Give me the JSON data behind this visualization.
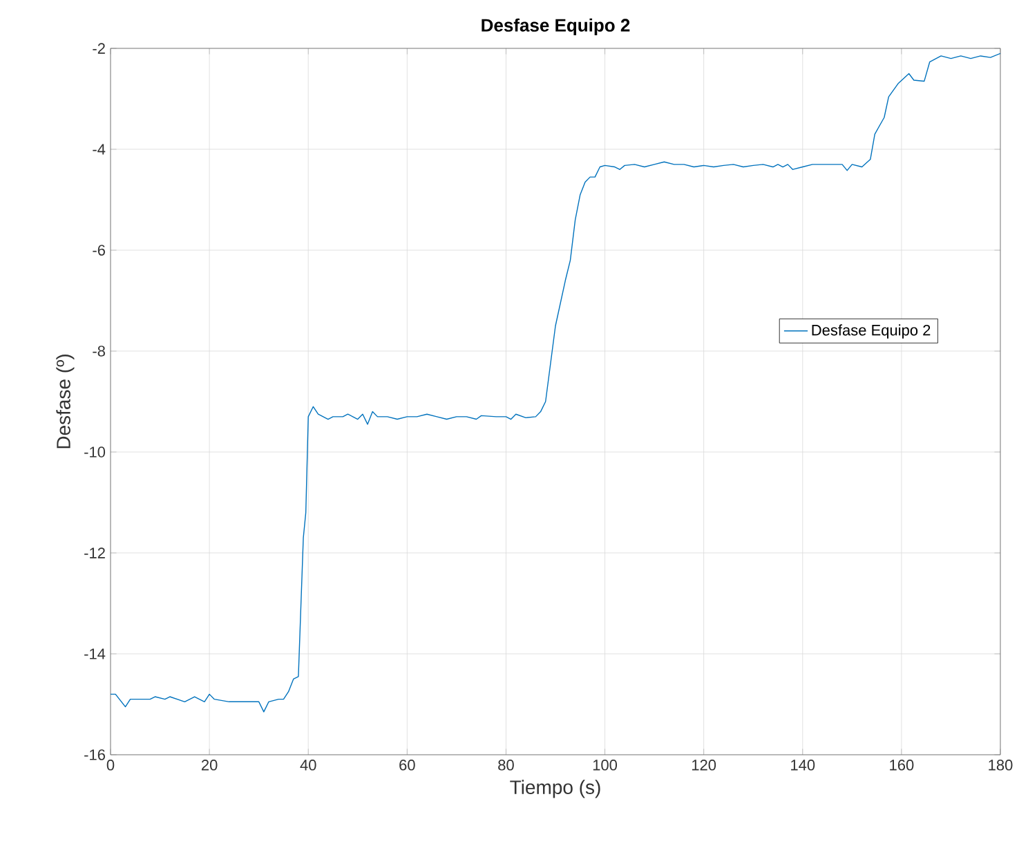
{
  "chart_data": {
    "type": "line",
    "title": "Desfase Equipo 2",
    "xlabel": "Tiempo (s)",
    "ylabel": "Desfase (º)",
    "xlim": [
      0,
      180
    ],
    "ylim": [
      -16,
      -2
    ],
    "xticks": [
      0,
      20,
      40,
      60,
      80,
      100,
      120,
      140,
      160,
      180
    ],
    "yticks": [
      -16,
      -14,
      -12,
      -10,
      -8,
      -6,
      -4,
      -2
    ],
    "grid": true,
    "legend": "right",
    "series": [
      {
        "name": "Desfase Equipo 2",
        "color": "#0072bd",
        "x": [
          0,
          1,
          3,
          4,
          8,
          9,
          11,
          12,
          15,
          17,
          19,
          20,
          21,
          24,
          27,
          30,
          31,
          32,
          34,
          35,
          36,
          37,
          38,
          39,
          39.5,
          40,
          41,
          42,
          44,
          45,
          47,
          48,
          49,
          50,
          51,
          52,
          53,
          54,
          56,
          58,
          60,
          62,
          64,
          66,
          68,
          70,
          72,
          74,
          75,
          78,
          80,
          81,
          82,
          84,
          86,
          87,
          88,
          90,
          92,
          93,
          94,
          95,
          96,
          97,
          98,
          99,
          100,
          102,
          103,
          104,
          106,
          108,
          110,
          112,
          114,
          116,
          118,
          120,
          122,
          124,
          126,
          128,
          130,
          132,
          134,
          135,
          136,
          137,
          138,
          140,
          142,
          144,
          146,
          148,
          149,
          150,
          152,
          153.7,
          154.6,
          156.5,
          157.4,
          159.3,
          161.5,
          162.5,
          164.6,
          165.7,
          168,
          170,
          172,
          174,
          176,
          178,
          180
        ],
        "values": [
          -14.8,
          -14.8,
          -15.05,
          -14.9,
          -14.9,
          -14.85,
          -14.9,
          -14.85,
          -14.95,
          -14.85,
          -14.95,
          -14.8,
          -14.9,
          -14.95,
          -14.95,
          -14.95,
          -15.15,
          -14.95,
          -14.9,
          -14.9,
          -14.75,
          -14.5,
          -14.45,
          -11.7,
          -11.2,
          -9.3,
          -9.1,
          -9.25,
          -9.35,
          -9.3,
          -9.3,
          -9.25,
          -9.3,
          -9.35,
          -9.25,
          -9.45,
          -9.2,
          -9.3,
          -9.3,
          -9.35,
          -9.3,
          -9.3,
          -9.25,
          -9.3,
          -9.35,
          -9.3,
          -9.3,
          -9.35,
          -9.28,
          -9.3,
          -9.3,
          -9.35,
          -9.25,
          -9.32,
          -9.3,
          -9.2,
          -9.0,
          -7.5,
          -6.6,
          -6.2,
          -5.4,
          -4.9,
          -4.65,
          -4.55,
          -4.55,
          -4.35,
          -4.32,
          -4.35,
          -4.4,
          -4.32,
          -4.3,
          -4.35,
          -4.3,
          -4.25,
          -4.3,
          -4.3,
          -4.35,
          -4.32,
          -4.35,
          -4.32,
          -4.3,
          -4.35,
          -4.32,
          -4.3,
          -4.35,
          -4.3,
          -4.35,
          -4.3,
          -4.4,
          -4.35,
          -4.3,
          -4.3,
          -4.3,
          -4.3,
          -4.42,
          -4.3,
          -4.35,
          -4.2,
          -3.7,
          -3.37,
          -2.96,
          -2.7,
          -2.5,
          -2.63,
          -2.65,
          -2.27,
          -2.15,
          -2.2,
          -2.15,
          -2.2,
          -2.15,
          -2.18,
          -2.1
        ]
      }
    ]
  }
}
